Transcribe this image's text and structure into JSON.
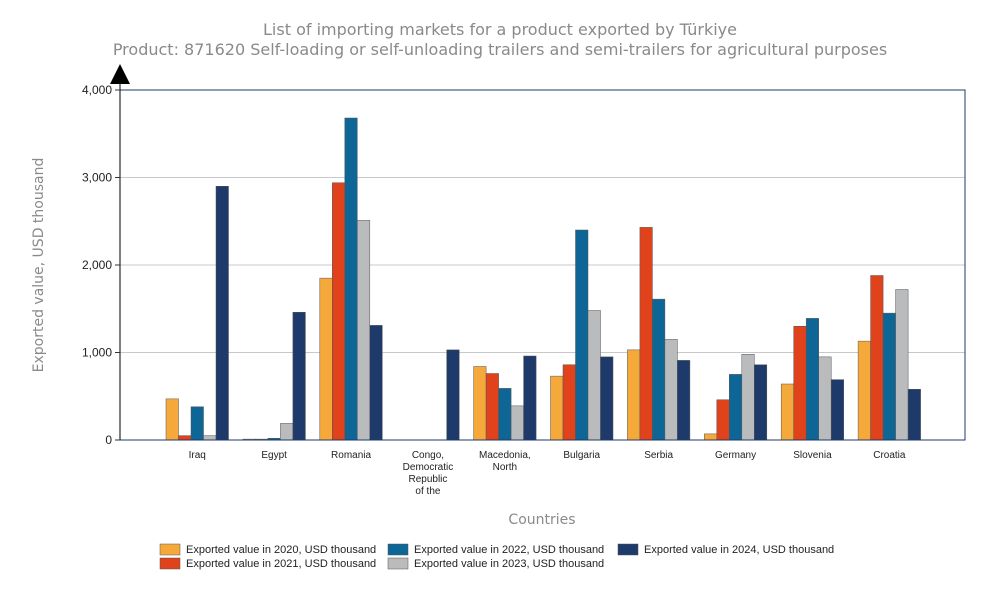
{
  "chart_data": {
    "type": "bar",
    "title": "List of importing markets for a product exported by Türkiye",
    "subtitle": "Product: 871620 Self-loading or self-unloading trailers and semi-trailers for agricultural purposes",
    "xlabel": "Countries",
    "ylabel": "Exported value, USD thousand",
    "ylim": [
      0,
      4000
    ],
    "yticks": [
      0,
      1000,
      2000,
      3000,
      4000
    ],
    "ytick_labels": [
      "0",
      "1,000",
      "2,000",
      "3,000",
      "4,000"
    ],
    "grid": true,
    "legend_position": "bottom",
    "categories": [
      [
        "Iraq"
      ],
      [
        "Egypt"
      ],
      [
        "Romania"
      ],
      [
        "Congo,",
        "Democratic",
        "Republic",
        "of the"
      ],
      [
        "Macedonia,",
        "North"
      ],
      [
        "Bulgaria"
      ],
      [
        "Serbia"
      ],
      [
        "Germany"
      ],
      [
        "Slovenia"
      ],
      [
        "Croatia"
      ]
    ],
    "series": [
      {
        "name": "Exported value in 2020, USD thousand",
        "color": "#f6a93b",
        "values": [
          470,
          10,
          1850,
          0,
          840,
          730,
          1030,
          70,
          640,
          1130
        ]
      },
      {
        "name": "Exported value in 2021, USD thousand",
        "color": "#e0431b",
        "values": [
          50,
          10,
          2940,
          0,
          760,
          860,
          2430,
          460,
          1300,
          1880
        ]
      },
      {
        "name": "Exported value in 2022, USD thousand",
        "color": "#0d6696",
        "values": [
          380,
          20,
          3680,
          0,
          590,
          2400,
          1610,
          750,
          1390,
          1450
        ]
      },
      {
        "name": "Exported value in 2023, USD thousand",
        "color": "#b9bbbd",
        "values": [
          50,
          190,
          2510,
          0,
          390,
          1480,
          1150,
          980,
          950,
          1720
        ]
      },
      {
        "name": "Exported value in 2024, USD thousand",
        "color": "#1e3a6b",
        "values": [
          2900,
          1460,
          1310,
          1030,
          960,
          950,
          910,
          860,
          690,
          580
        ]
      }
    ]
  }
}
